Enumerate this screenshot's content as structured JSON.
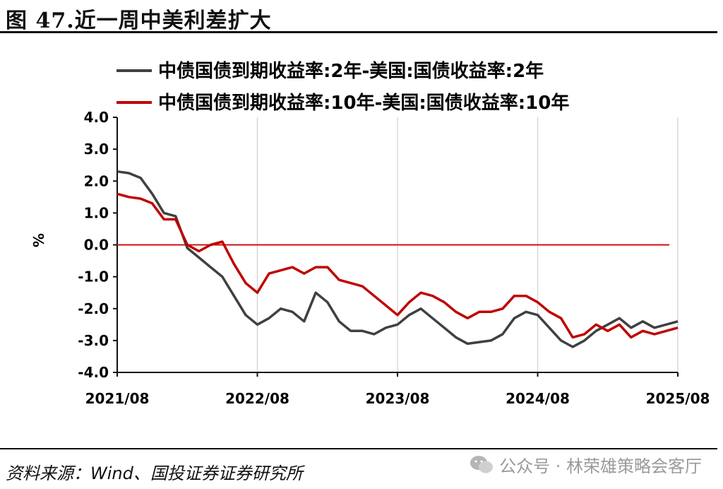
{
  "figure": {
    "title": "图 47.近一周中美利差扩大",
    "source": "资料来源：Wind、国投证券证券研究所",
    "watermark": "公众号 · 林荣雄策略会客厅"
  },
  "chart_data": {
    "type": "line",
    "title": "",
    "xlabel": "",
    "ylabel": "%",
    "ylim": [
      -4.0,
      4.0
    ],
    "yticks": [
      "4.0",
      "3.0",
      "2.0",
      "1.0",
      "0.0",
      "-1.0",
      "-2.0",
      "-3.0",
      "-4.0"
    ],
    "xticks": [
      "2021/08",
      "2022/08",
      "2023/08",
      "2024/08",
      "2025/08"
    ],
    "x_range": [
      "2021-08",
      "2025-08"
    ],
    "grid": "vertical",
    "legend_position": "top",
    "reference_line": {
      "y": 0.0,
      "color": "#d01010"
    },
    "x": [
      "2021-08",
      "2021-09",
      "2021-10",
      "2021-11",
      "2021-12",
      "2022-01",
      "2022-02",
      "2022-03",
      "2022-04",
      "2022-05",
      "2022-06",
      "2022-07",
      "2022-08",
      "2022-09",
      "2022-10",
      "2022-11",
      "2022-12",
      "2023-01",
      "2023-02",
      "2023-03",
      "2023-04",
      "2023-05",
      "2023-06",
      "2023-07",
      "2023-08",
      "2023-09",
      "2023-10",
      "2023-11",
      "2023-12",
      "2024-01",
      "2024-02",
      "2024-03",
      "2024-04",
      "2024-05",
      "2024-06",
      "2024-07",
      "2024-08",
      "2024-09",
      "2024-10",
      "2024-11",
      "2024-12",
      "2025-01",
      "2025-02",
      "2025-03",
      "2025-04",
      "2025-05",
      "2025-06",
      "2025-07",
      "2025-08"
    ],
    "series": [
      {
        "name": "中债国债到期收益率:2年-美国:国债收益率:2年",
        "color": "#404040",
        "values": [
          2.3,
          2.25,
          2.1,
          1.6,
          1.0,
          0.9,
          -0.1,
          -0.4,
          -0.7,
          -1.0,
          -1.6,
          -2.2,
          -2.5,
          -2.3,
          -2.0,
          -2.1,
          -2.4,
          -1.5,
          -1.8,
          -2.4,
          -2.7,
          -2.7,
          -2.8,
          -2.6,
          -2.5,
          -2.2,
          -2.0,
          -2.3,
          -2.6,
          -2.9,
          -3.1,
          -3.05,
          -3.0,
          -2.8,
          -2.3,
          -2.1,
          -2.2,
          -2.6,
          -3.0,
          -3.2,
          -3.0,
          -2.7,
          -2.5,
          -2.3,
          -2.6,
          -2.4,
          -2.6,
          -2.5,
          -2.4
        ]
      },
      {
        "name": "中债国债到期收益率:10年-美国:国债收益率:10年",
        "color": "#c00000",
        "values": [
          1.6,
          1.5,
          1.45,
          1.3,
          0.8,
          0.8,
          0.0,
          -0.2,
          0.0,
          0.1,
          -0.6,
          -1.2,
          -1.5,
          -0.9,
          -0.8,
          -0.7,
          -0.9,
          -0.7,
          -0.7,
          -1.1,
          -1.2,
          -1.3,
          -1.6,
          -1.9,
          -2.2,
          -1.8,
          -1.5,
          -1.6,
          -1.8,
          -2.1,
          -2.3,
          -2.1,
          -2.1,
          -2.0,
          -1.6,
          -1.6,
          -1.8,
          -2.1,
          -2.3,
          -2.9,
          -2.8,
          -2.5,
          -2.7,
          -2.5,
          -2.9,
          -2.7,
          -2.8,
          -2.7,
          -2.6
        ]
      }
    ]
  }
}
